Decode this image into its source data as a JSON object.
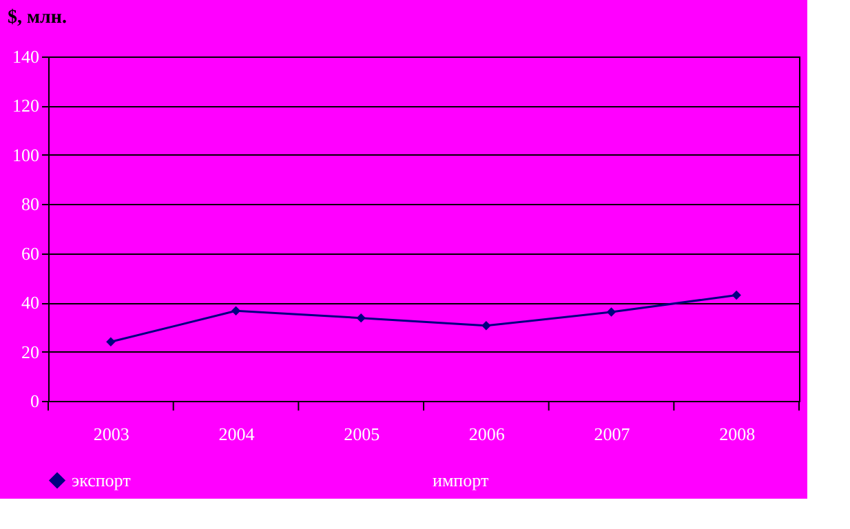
{
  "chart_data": {
    "type": "line",
    "ylabel": "$, млн.",
    "categories": [
      "2003",
      "2004",
      "2005",
      "2006",
      "2007",
      "2008"
    ],
    "series": [
      {
        "name": "экспорт",
        "color": "#000080",
        "values": [
          24,
          36.6,
          33.7,
          30.6,
          36.1,
          43
        ]
      },
      {
        "name": "импорт",
        "values": [
          null,
          null,
          null,
          null,
          null,
          null
        ]
      }
    ],
    "ylim": [
      0,
      140
    ],
    "yticks": [
      0,
      20,
      40,
      60,
      80,
      100,
      120,
      140
    ],
    "grid": "y",
    "legend": "bottom",
    "marker": "diamond",
    "line_style": "solid"
  }
}
